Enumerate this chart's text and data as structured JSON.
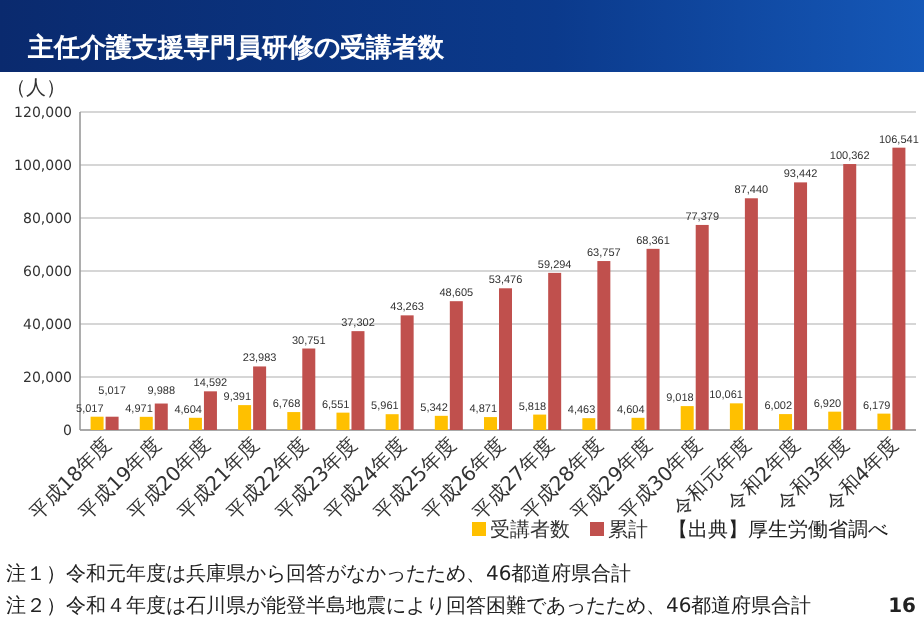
{
  "chart_data": {
    "type": "bar",
    "title": "主任介護支援専門員研修の受講者数",
    "ylabel": "（人）",
    "categories": [
      "平成18年度",
      "平成19年度",
      "平成20年度",
      "平成21年度",
      "平成22年度",
      "平成23年度",
      "平成24年度",
      "平成25年度",
      "平成26年度",
      "平成27年度",
      "平成28年度",
      "平成29年度",
      "平成30年度",
      "令和元年度",
      "令和2年度",
      "令和3年度",
      "令和4年度"
    ],
    "series": [
      {
        "name": "受講者数",
        "color": "#ffc000",
        "values": [
          5017,
          4971,
          4604,
          9391,
          6768,
          6551,
          5961,
          5342,
          4871,
          5818,
          4463,
          4604,
          9018,
          10061,
          6002,
          6920,
          6179
        ],
        "value_labels": [
          "5,017",
          "4,971",
          "4,604",
          "9,391",
          "6,768",
          "6,551",
          "5,961",
          "5,342",
          "4,871",
          "5,818",
          "4,463",
          "4,604",
          "9,018",
          "10,061",
          "6,002",
          "6,920",
          "6,179"
        ]
      },
      {
        "name": "累計",
        "color": "#c0504d",
        "values": [
          5017,
          9988,
          14592,
          23983,
          30751,
          37302,
          43263,
          48605,
          53476,
          59294,
          63757,
          68361,
          77379,
          87440,
          93442,
          100362,
          106541
        ],
        "value_labels": [
          "5,017",
          "9,988",
          "14,592",
          "23,983",
          "30,751",
          "37,302",
          "43,263",
          "48,605",
          "53,476",
          "59,294",
          "63,757",
          "68,361",
          "77,379",
          "87,440",
          "93,442",
          "100,362",
          "106,541"
        ]
      }
    ],
    "ylim": [
      0,
      120000
    ],
    "yticks": [
      {
        "value": 0,
        "label": "0"
      },
      {
        "value": 20000,
        "label": "20,000"
      },
      {
        "value": 40000,
        "label": "40,000"
      },
      {
        "value": 60000,
        "label": "60,000"
      },
      {
        "value": 80000,
        "label": "80,000"
      },
      {
        "value": 100000,
        "label": "100,000"
      },
      {
        "value": 120000,
        "label": "120,000"
      }
    ],
    "grid": "y",
    "legend": "bottom right",
    "annotations": [
      "【出典】厚生労働省調べ",
      "注１）令和元年度は兵庫県から回答がなかったため、46都道府県合計",
      "注２）令和４年度は石川県が能登半島地震により回答困難であったため、46都道府県合計",
      "16"
    ]
  }
}
